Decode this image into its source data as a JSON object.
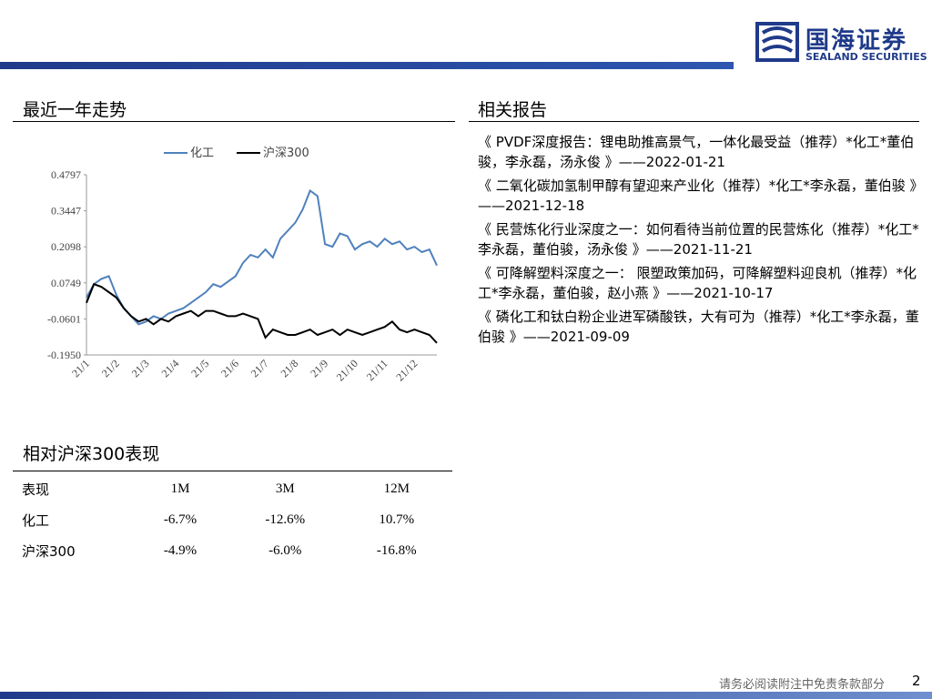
{
  "header": {
    "logo_cn": "国海证券",
    "logo_en": "SEALAND SECURITIES"
  },
  "sections": {
    "trend_title": "最近一年走势",
    "reports_title": "相关报告",
    "perf_title": "相对沪深300表现"
  },
  "chart_data": {
    "type": "line",
    "categories": [
      "21/1",
      null,
      null,
      null,
      "21/2",
      null,
      null,
      null,
      "21/3",
      null,
      null,
      null,
      "21/4",
      null,
      null,
      null,
      "21/5",
      null,
      null,
      null,
      "21/6",
      null,
      null,
      null,
      "21/7",
      null,
      null,
      null,
      "21/8",
      null,
      null,
      null,
      "21/9",
      null,
      null,
      null,
      "21/10",
      null,
      null,
      null,
      "21/11",
      null,
      null,
      null,
      "21/12",
      null,
      null,
      null
    ],
    "series": [
      {
        "name": "化工",
        "color": "#4f81bd",
        "values": [
          0.02,
          0.07,
          0.09,
          0.1,
          0.03,
          -0.02,
          -0.05,
          -0.08,
          -0.07,
          -0.05,
          -0.06,
          -0.04,
          -0.03,
          -0.02,
          0.0,
          0.02,
          0.04,
          0.07,
          0.06,
          0.08,
          0.1,
          0.15,
          0.18,
          0.17,
          0.2,
          0.17,
          0.24,
          0.27,
          0.3,
          0.35,
          0.42,
          0.4,
          0.22,
          0.21,
          0.26,
          0.25,
          0.2,
          0.22,
          0.23,
          0.21,
          0.24,
          0.22,
          0.23,
          0.2,
          0.21,
          0.19,
          0.2,
          0.14
        ]
      },
      {
        "name": "沪深300",
        "color": "#000000",
        "values": [
          0.0,
          0.07,
          0.06,
          0.04,
          0.02,
          -0.02,
          -0.05,
          -0.07,
          -0.06,
          -0.08,
          -0.06,
          -0.07,
          -0.05,
          -0.04,
          -0.03,
          -0.05,
          -0.03,
          -0.03,
          -0.04,
          -0.05,
          -0.05,
          -0.04,
          -0.05,
          -0.06,
          -0.13,
          -0.1,
          -0.11,
          -0.12,
          -0.12,
          -0.11,
          -0.1,
          -0.12,
          -0.11,
          -0.1,
          -0.12,
          -0.1,
          -0.11,
          -0.12,
          -0.11,
          -0.1,
          -0.09,
          -0.07,
          -0.1,
          -0.11,
          -0.1,
          -0.11,
          -0.12,
          -0.15
        ]
      }
    ],
    "ylim": [
      -0.195,
      0.4797
    ],
    "yticks": [
      {
        "value": -0.195,
        "label": "-0.1950"
      },
      -0.0601,
      0.0749,
      0.2098,
      0.3447,
      0.4797
    ],
    "legend": "top"
  },
  "reports": [
    "《 PVDF深度报告：锂电助推高景气，一体化最受益（推荐）*化工*董伯骏，李永磊，汤永俊 》——2022-01-21",
    "《 二氧化碳加氢制甲醇有望迎来产业化（推荐）*化工*李永磊，董伯骏 》——2021-12-18",
    "《 民营炼化行业深度之一：如何看待当前位置的民营炼化（推荐）*化工*李永磊，董伯骏，汤永俊 》——2021-11-21",
    "《 可降解塑料深度之一： 限塑政策加码，可降解塑料迎良机（推荐）*化工*李永磊，董伯骏，赵小燕 》——2021-10-17",
    "《 磷化工和钛白粉企业进军磷酸铁，大有可为（推荐）*化工*李永磊，董伯骏 》——2021-09-09"
  ],
  "table": {
    "header": [
      "表现",
      "1M",
      "3M",
      "12M"
    ],
    "rows": [
      [
        "化工",
        "-6.7%",
        "-12.6%",
        "10.7%"
      ],
      [
        "沪深300",
        "-4.9%",
        "-6.0%",
        "-16.8%"
      ]
    ]
  },
  "footer": {
    "disclaimer": "请务必阅读附注中免责条款部分",
    "page": "2"
  }
}
